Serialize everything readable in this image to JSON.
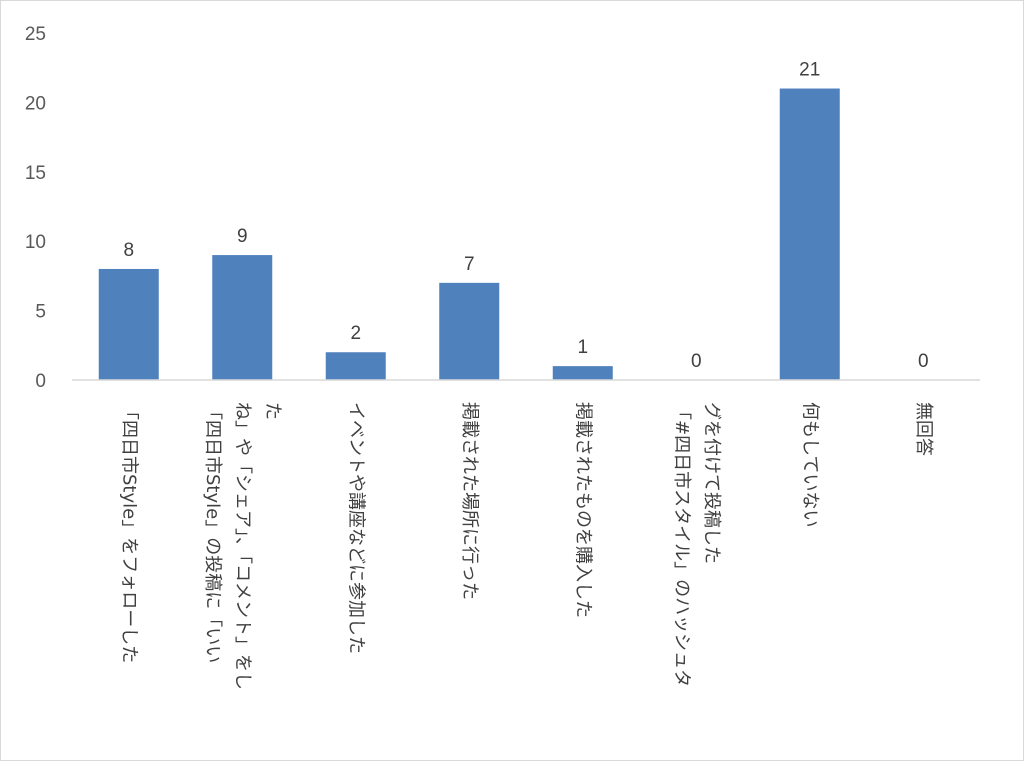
{
  "chart_data": {
    "type": "bar",
    "title": "",
    "xlabel": "",
    "ylabel": "",
    "ylim": [
      0,
      25
    ],
    "yticks": [
      0,
      5,
      10,
      15,
      20,
      25
    ],
    "grid": false,
    "legend": "none",
    "bar_color": "#4f81bd",
    "categories": [
      [
        "「四日市Style」をフォローした"
      ],
      [
        "「四日市Style」の投稿に「いい",
        "ね」や「シェア」、「コメント」をし",
        "た"
      ],
      [
        "イベントや講座などに参加した"
      ],
      [
        "掲載された場所に行った"
      ],
      [
        "掲載されたものを購入した"
      ],
      [
        "「#四日市スタイル」のハッシュタ",
        "グを付けて投稿した"
      ],
      [
        "何もしていない"
      ],
      [
        "無回答"
      ]
    ],
    "values": [
      8,
      9,
      2,
      7,
      1,
      0,
      21,
      0
    ]
  }
}
